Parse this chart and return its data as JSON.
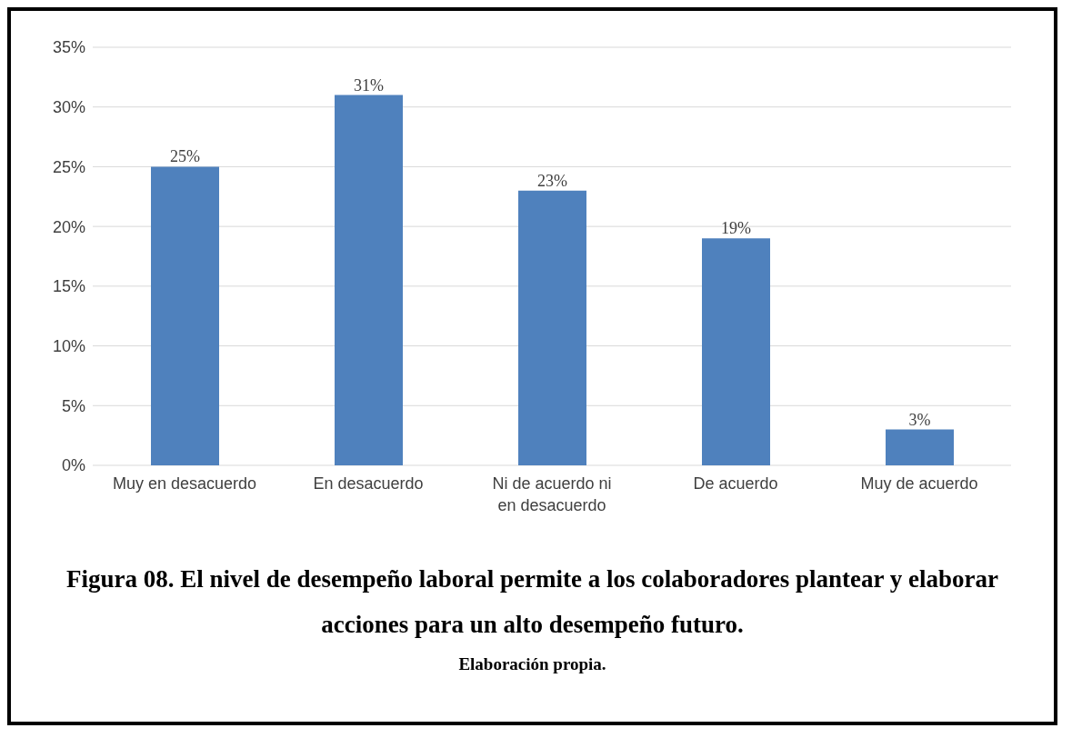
{
  "chart_data": {
    "type": "bar",
    "title": "Figura 08. El nivel de desempeño laboral permite a los colaboradores plantear y elaborar acciones para un alto desempeño futuro.",
    "annotations": [
      "Elaboración propia."
    ],
    "categories": [
      "Muy en desacuerdo",
      "En desacuerdo",
      "Ni de acuerdo ni en desacuerdo",
      "De acuerdo",
      "Muy de acuerdo"
    ],
    "values": [
      25,
      31,
      23,
      19,
      3
    ],
    "value_labels": [
      "25%",
      "31%",
      "23%",
      "19%",
      "3%"
    ],
    "color": "#4f81bd",
    "ylim": [
      0,
      35
    ],
    "yticks": [
      {
        "value": 0,
        "label": "0%"
      },
      {
        "value": 5,
        "label": "5%"
      },
      {
        "value": 10,
        "label": "10%"
      },
      {
        "value": 15,
        "label": "15%"
      },
      {
        "value": 20,
        "label": "20%"
      },
      {
        "value": 25,
        "label": "25%"
      },
      {
        "value": 30,
        "label": "30%"
      },
      {
        "value": 35,
        "label": "35%"
      }
    ],
    "grid": true,
    "legend": false
  }
}
